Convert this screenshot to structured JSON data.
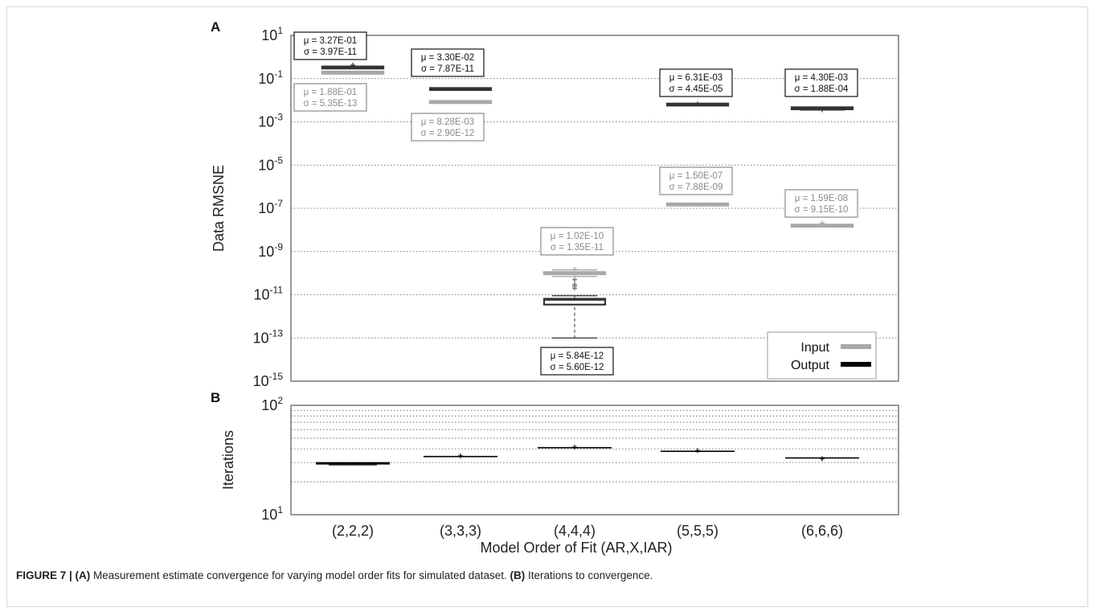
{
  "chart_data": [
    {
      "panel": "A",
      "type": "box",
      "ylabel": "Data RMSNE",
      "yscale": "log",
      "ylim": [
        1e-15,
        10
      ],
      "yticks": [
        {
          "v": 10.0,
          "base": "10",
          "exp": "1"
        },
        {
          "v": 0.1,
          "base": "10",
          "exp": "-1"
        },
        {
          "v": 0.001,
          "base": "10",
          "exp": "-3"
        },
        {
          "v": 1e-05,
          "base": "10",
          "exp": "-5"
        },
        {
          "v": 1e-07,
          "base": "10",
          "exp": "-7"
        },
        {
          "v": 1e-09,
          "base": "10",
          "exp": "-9"
        },
        {
          "v": 1e-11,
          "base": "10",
          "exp": "-11"
        },
        {
          "v": 1e-13,
          "base": "10",
          "exp": "-13"
        },
        {
          "v": 1e-15,
          "base": "10",
          "exp": "-15"
        }
      ],
      "grid": "horizontal dotted",
      "legend": {
        "position": "bottom-right",
        "entries": [
          {
            "name": "Input",
            "color": "#a8a8a8"
          },
          {
            "name": "Output",
            "color": "#000000"
          }
        ]
      },
      "categories": [
        "(2,2,2)",
        "(3,3,3)",
        "(4,4,4)",
        "(5,5,5)",
        "(6,6,6)"
      ],
      "series": [
        {
          "name": "Output",
          "color": "#333333",
          "values": [
            0.327,
            0.033,
            5.84e-12,
            0.00631,
            0.0043
          ],
          "whisker_low": [
            0.31,
            0.033,
            1e-13,
            0.006,
            0.0035
          ],
          "whisker_high": [
            0.35,
            0.033,
            9e-12,
            0.0068,
            0.0048
          ],
          "q1": [
            0.327,
            0.033,
            3.5e-12,
            0.0063,
            0.004
          ],
          "q3": [
            0.327,
            0.033,
            6.5e-12,
            0.0063,
            0.0045
          ],
          "outliers": [
            [
              0.42
            ],
            [],
            [],
            [
              0.0068
            ],
            [
              0.0036
            ]
          ],
          "labels": [
            {
              "mu": "μ = 3.27E-01",
              "sigma": "σ = 3.97E-11"
            },
            {
              "mu": "μ = 3.30E-02",
              "sigma": "σ = 7.87E-11"
            },
            {
              "mu": "μ = 5.84E-12",
              "sigma": "σ = 5.60E-12"
            },
            {
              "mu": "μ = 6.31E-03",
              "sigma": "σ = 4.45E-05"
            },
            {
              "mu": "μ = 4.30E-03",
              "sigma": "σ = 1.88E-04"
            }
          ]
        },
        {
          "name": "Input",
          "color": "#a8a8a8",
          "values": [
            0.188,
            0.00828,
            1.02e-10,
            1.5e-07,
            1.59e-08
          ],
          "whisker_low": [
            0.188,
            0.00828,
            7e-11,
            1.35e-07,
            1.45e-08
          ],
          "whisker_high": [
            0.188,
            0.00828,
            1.4e-10,
            1.65e-07,
            1.75e-08
          ],
          "q1": [
            0.188,
            0.00828,
            9e-11,
            1.45e-07,
            1.5e-08
          ],
          "q3": [
            0.188,
            0.00828,
            1.1e-10,
            1.55e-07,
            1.65e-08
          ],
          "outliers": [
            [],
            [],
            [
              1.5e-10
            ],
            [],
            [
              2.1e-08
            ]
          ],
          "labels": [
            {
              "mu": "μ = 1.88E-01",
              "sigma": "σ = 5.35E-13"
            },
            {
              "mu": "μ = 8.28E-03",
              "sigma": "σ = 2.90E-12"
            },
            {
              "mu": "μ = 1.02E-10",
              "sigma": "σ = 1.35E-11"
            },
            {
              "mu": "μ = 1.50E-07",
              "sigma": "σ = 7.88E-09"
            },
            {
              "mu": "μ = 1.59E-08",
              "sigma": "σ = 9.15E-10"
            }
          ]
        }
      ],
      "extra_outliers_output_444": [
        5e-11,
        3e-11,
        2.5e-11,
        2e-11
      ]
    },
    {
      "panel": "B",
      "type": "box",
      "ylabel": "Iterations",
      "xlabel": "Model Order of Fit (AR,X,IAR)",
      "yscale": "log",
      "ylim": [
        10,
        100
      ],
      "yticks": [
        {
          "v": 10,
          "base": "10",
          "exp": "1"
        },
        {
          "v": 100,
          "base": "10",
          "exp": "2"
        }
      ],
      "grid_values": [
        20,
        30,
        40,
        50,
        60,
        70,
        80,
        90
      ],
      "categories": [
        "(2,2,2)",
        "(3,3,3)",
        "(4,4,4)",
        "(5,5,5)",
        "(6,6,6)"
      ],
      "series": [
        {
          "name": "Iterations",
          "color": "#000000",
          "values": [
            29.5,
            34,
            41,
            38,
            33
          ],
          "whisker_low": [
            28.5,
            34,
            41,
            38,
            33
          ],
          "whisker_high": [
            29.5,
            34.5,
            42,
            38.5,
            33.5
          ],
          "outliers": [
            [],
            [
              34.5
            ],
            [
              41.5
            ],
            [
              38.5
            ],
            [
              32.5
            ]
          ]
        }
      ]
    }
  ],
  "caption": {
    "label": "FIGURE 7 | (A)",
    "text_a": " Measurement estimate convergence for varying model order fits for simulated dataset. ",
    "label_b": "(B)",
    "text_b": " Iterations to convergence."
  }
}
